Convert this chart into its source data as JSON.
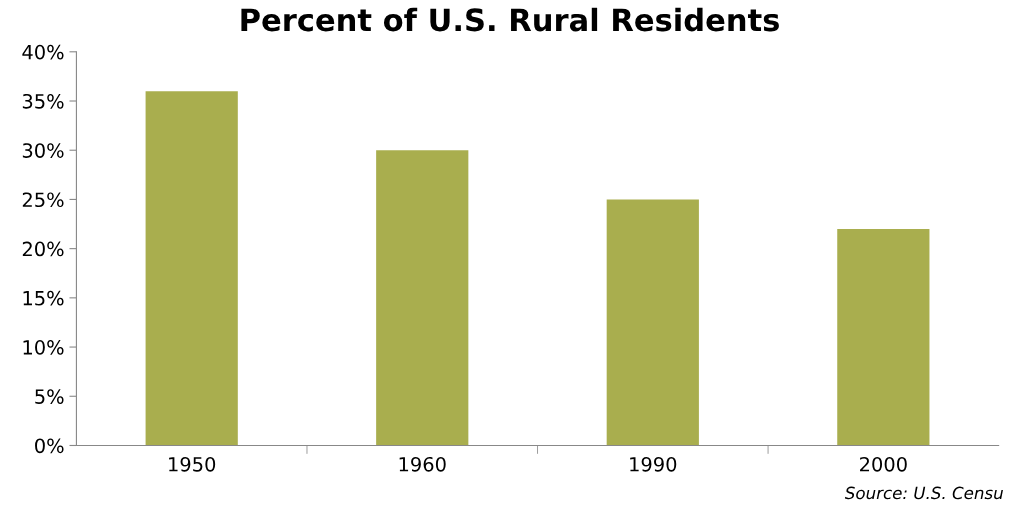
{
  "chart_data": {
    "type": "bar",
    "title": "Percent of U.S. Rural Residents",
    "categories": [
      "1950",
      "1960",
      "1990",
      "2000"
    ],
    "values": [
      36,
      30,
      25,
      22
    ],
    "color": "#a9ae4e",
    "ylim": [
      0,
      40
    ],
    "yticks": [
      {
        "value": 0,
        "label": "0%"
      },
      {
        "value": 5,
        "label": "5%"
      },
      {
        "value": 10,
        "label": "10%"
      },
      {
        "value": 15,
        "label": "15%"
      },
      {
        "value": 20,
        "label": "20%"
      },
      {
        "value": 25,
        "label": "25%"
      },
      {
        "value": 30,
        "label": "30%"
      },
      {
        "value": 35,
        "label": "35%"
      },
      {
        "value": 40,
        "label": "40%"
      }
    ],
    "annotations": [
      "Source: U.S. Censu"
    ],
    "grid": false
  }
}
